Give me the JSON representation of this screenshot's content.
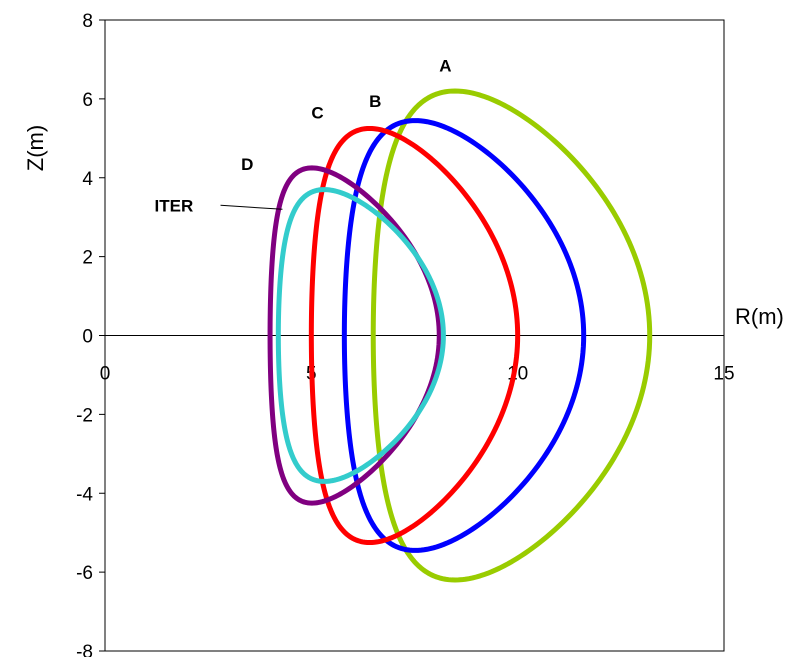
{
  "chart_data": {
    "type": "line",
    "title": "",
    "xlabel": "R(m)",
    "ylabel": "Z(m)",
    "xlim": [
      0,
      15
    ],
    "ylim": [
      -8,
      8
    ],
    "x_ticks": [
      0,
      5,
      10,
      15
    ],
    "y_ticks": [
      -8,
      -6,
      -4,
      -2,
      0,
      2,
      4,
      6,
      8
    ],
    "grid": false,
    "axes_through_origin": true,
    "series": [
      {
        "name": "A",
        "color": "#99cc00",
        "shape": {
          "r_inner": 6.5,
          "r_outer": 13.2,
          "z_max": 6.2,
          "triangularity": 0.42
        }
      },
      {
        "name": "B",
        "color": "#0000ff",
        "shape": {
          "r_inner": 5.8,
          "r_outer": 11.6,
          "z_max": 5.45,
          "triangularity": 0.42
        }
      },
      {
        "name": "C",
        "color": "#ff0000",
        "shape": {
          "r_inner": 5.0,
          "r_outer": 10.0,
          "z_max": 5.25,
          "triangularity": 0.45
        }
      },
      {
        "name": "D",
        "color": "#800080",
        "shape": {
          "r_inner": 4.0,
          "r_outer": 8.1,
          "z_max": 4.25,
          "triangularity": 0.53
        }
      },
      {
        "name": "ITER",
        "color": "#33cccc",
        "shape": {
          "r_inner": 4.2,
          "r_outer": 8.2,
          "z_max": 3.7,
          "triangularity": 0.46
        }
      }
    ],
    "annotations": [
      {
        "text": "A",
        "series": "A",
        "at": [
          8.1,
          6.7
        ]
      },
      {
        "text": "B",
        "series": "B",
        "at": [
          6.4,
          5.8
        ]
      },
      {
        "text": "C",
        "series": "C",
        "at": [
          5.0,
          5.5
        ]
      },
      {
        "text": "D",
        "series": "D",
        "at": [
          3.3,
          4.2
        ]
      },
      {
        "text": "ITER",
        "series": "ITER",
        "at": [
          1.2,
          3.15
        ],
        "leader_to": [
          4.3,
          3.2
        ]
      }
    ]
  }
}
